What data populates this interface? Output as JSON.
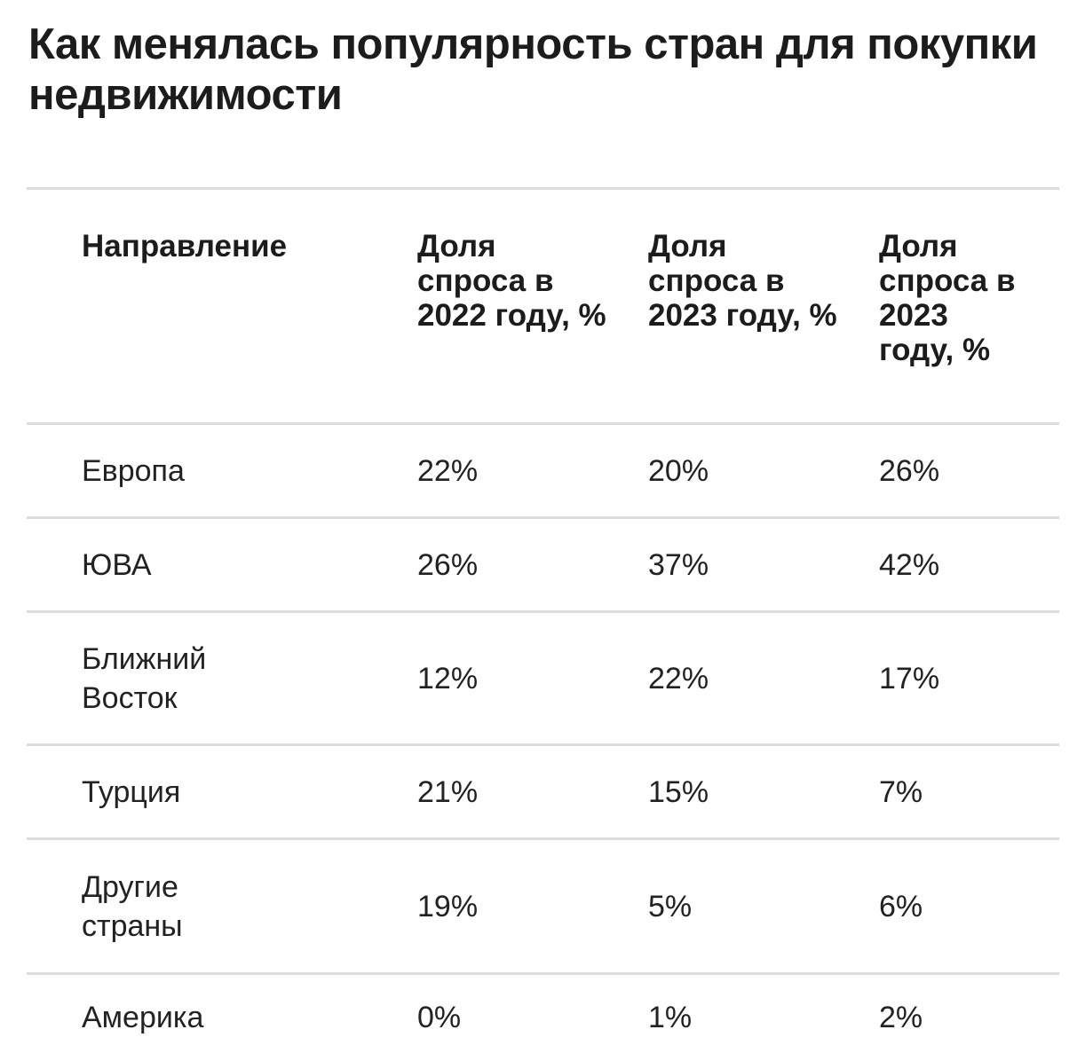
{
  "title": "Как менялась популярность стран для покупки недвижимости",
  "table": {
    "headers": [
      "Направление",
      "Доля спроса в 2022 году, %",
      "Доля спроса в 2023 году, %",
      "Доля спроса в 2023 году, %"
    ],
    "rows": [
      [
        "Европа",
        "22%",
        "20%",
        "26%"
      ],
      [
        "ЮВА",
        "26%",
        "37%",
        "42%"
      ],
      [
        "Ближний Восток",
        "12%",
        "22%",
        "17%"
      ],
      [
        "Турция",
        "21%",
        "15%",
        "7%"
      ],
      [
        "Другие страны",
        "19%",
        "5%",
        "6%"
      ],
      [
        "Америка",
        "0%",
        "1%",
        "2%"
      ]
    ]
  }
}
